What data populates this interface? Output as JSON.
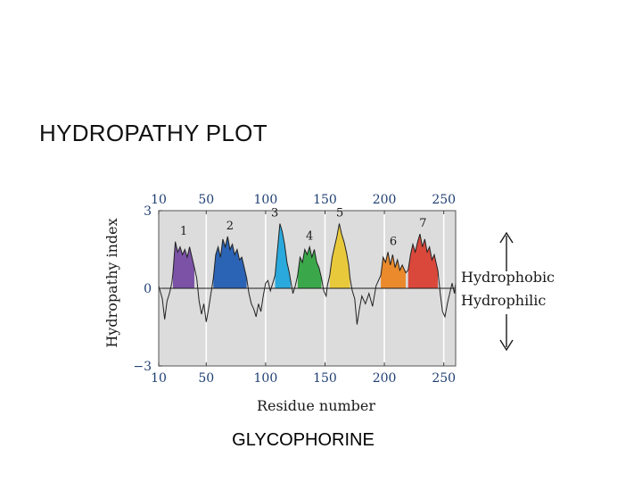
{
  "slide": {
    "title": "HYDROPATHY PLOT",
    "caption": "GLYCOPHORINE"
  },
  "chart_data": {
    "type": "area",
    "title": "",
    "xlabel": "Residue number",
    "ylabel": "Hydropathy index",
    "xlim": [
      10,
      260
    ],
    "ylim": [
      -3,
      3
    ],
    "x_ticks": [
      10,
      50,
      100,
      150,
      200,
      250
    ],
    "y_ticks": [
      3,
      0,
      -3
    ],
    "grid": "vertical lines at x ticks",
    "background": "#dcdcdc",
    "annotations": [
      {
        "text": "Hydrophobic",
        "arrow": "up"
      },
      {
        "text": "Hydrophilic",
        "arrow": "down"
      }
    ],
    "segments": [
      {
        "label": "1",
        "color": "#7b52a6",
        "x_range": [
          22,
          40
        ]
      },
      {
        "label": "2",
        "color": "#2b63b5",
        "x_range": [
          56,
          84
        ]
      },
      {
        "label": "3",
        "color": "#2aa9dc",
        "x_range": [
          108,
          121
        ]
      },
      {
        "label": "4",
        "color": "#3aa84a",
        "x_range": [
          127,
          147
        ]
      },
      {
        "label": "5",
        "color": "#e9c93c",
        "x_range": [
          154,
          171
        ]
      },
      {
        "label": "6",
        "color": "#ea8a2c",
        "x_range": [
          197,
          218
        ]
      },
      {
        "label": "7",
        "color": "#d9483b",
        "x_range": [
          220,
          245
        ]
      }
    ],
    "profile": [
      [
        10,
        0.1
      ],
      [
        13,
        -0.4
      ],
      [
        15,
        -1.2
      ],
      [
        17,
        -0.5
      ],
      [
        19,
        -0.2
      ],
      [
        21,
        0.2
      ],
      [
        22,
        0.6
      ],
      [
        24,
        1.8
      ],
      [
        26,
        1.4
      ],
      [
        28,
        1.6
      ],
      [
        30,
        1.3
      ],
      [
        32,
        1.5
      ],
      [
        34,
        1.2
      ],
      [
        36,
        1.6
      ],
      [
        38,
        1.2
      ],
      [
        40,
        0.8
      ],
      [
        42,
        0.4
      ],
      [
        44,
        -0.5
      ],
      [
        46,
        -1.0
      ],
      [
        48,
        -0.6
      ],
      [
        50,
        -1.3
      ],
      [
        52,
        -0.8
      ],
      [
        54,
        -0.2
      ],
      [
        56,
        0.4
      ],
      [
        58,
        1.3
      ],
      [
        60,
        1.6
      ],
      [
        62,
        1.2
      ],
      [
        64,
        1.9
      ],
      [
        66,
        1.6
      ],
      [
        68,
        2.0
      ],
      [
        70,
        1.5
      ],
      [
        72,
        1.7
      ],
      [
        74,
        1.3
      ],
      [
        76,
        1.5
      ],
      [
        78,
        1.1
      ],
      [
        80,
        1.2
      ],
      [
        82,
        0.8
      ],
      [
        84,
        0.4
      ],
      [
        86,
        -0.2
      ],
      [
        88,
        -0.6
      ],
      [
        90,
        -0.8
      ],
      [
        92,
        -1.1
      ],
      [
        94,
        -0.6
      ],
      [
        96,
        -0.9
      ],
      [
        98,
        -0.3
      ],
      [
        100,
        0.2
      ],
      [
        102,
        0.3
      ],
      [
        104,
        -0.1
      ],
      [
        106,
        0.2
      ],
      [
        108,
        0.5
      ],
      [
        110,
        1.5
      ],
      [
        112,
        2.5
      ],
      [
        114,
        2.2
      ],
      [
        116,
        1.7
      ],
      [
        118,
        1.0
      ],
      [
        120,
        0.6
      ],
      [
        121,
        0.3
      ],
      [
        123,
        -0.2
      ],
      [
        125,
        0.1
      ],
      [
        127,
        0.5
      ],
      [
        129,
        1.2
      ],
      [
        131,
        1.0
      ],
      [
        133,
        1.5
      ],
      [
        135,
        1.3
      ],
      [
        137,
        1.6
      ],
      [
        139,
        1.2
      ],
      [
        141,
        1.5
      ],
      [
        143,
        1.0
      ],
      [
        145,
        0.8
      ],
      [
        147,
        0.4
      ],
      [
        149,
        -0.1
      ],
      [
        151,
        -0.3
      ],
      [
        152,
        0.1
      ],
      [
        154,
        0.5
      ],
      [
        156,
        1.2
      ],
      [
        158,
        1.6
      ],
      [
        160,
        2.0
      ],
      [
        162,
        2.5
      ],
      [
        164,
        2.1
      ],
      [
        166,
        1.8
      ],
      [
        168,
        1.4
      ],
      [
        170,
        0.9
      ],
      [
        171,
        0.4
      ],
      [
        173,
        -0.1
      ],
      [
        175,
        -0.4
      ],
      [
        177,
        -1.4
      ],
      [
        179,
        -0.8
      ],
      [
        181,
        -0.3
      ],
      [
        184,
        -0.6
      ],
      [
        187,
        -0.2
      ],
      [
        190,
        -0.7
      ],
      [
        193,
        0.1
      ],
      [
        195,
        0.3
      ],
      [
        197,
        0.5
      ],
      [
        199,
        1.2
      ],
      [
        201,
        1.0
      ],
      [
        203,
        1.4
      ],
      [
        205,
        0.9
      ],
      [
        207,
        1.3
      ],
      [
        209,
        0.8
      ],
      [
        211,
        1.1
      ],
      [
        213,
        0.7
      ],
      [
        215,
        0.9
      ],
      [
        218,
        0.6
      ],
      [
        220,
        0.7
      ],
      [
        222,
        1.3
      ],
      [
        224,
        1.7
      ],
      [
        226,
        1.4
      ],
      [
        228,
        1.8
      ],
      [
        230,
        2.1
      ],
      [
        232,
        1.6
      ],
      [
        234,
        1.9
      ],
      [
        236,
        1.4
      ],
      [
        238,
        1.6
      ],
      [
        240,
        1.1
      ],
      [
        242,
        1.3
      ],
      [
        245,
        0.7
      ],
      [
        247,
        -0.2
      ],
      [
        249,
        -0.9
      ],
      [
        251,
        -1.1
      ],
      [
        253,
        -0.6
      ],
      [
        255,
        -0.2
      ],
      [
        257,
        0.2
      ],
      [
        259,
        -0.2
      ],
      [
        260,
        0.2
      ]
    ]
  }
}
